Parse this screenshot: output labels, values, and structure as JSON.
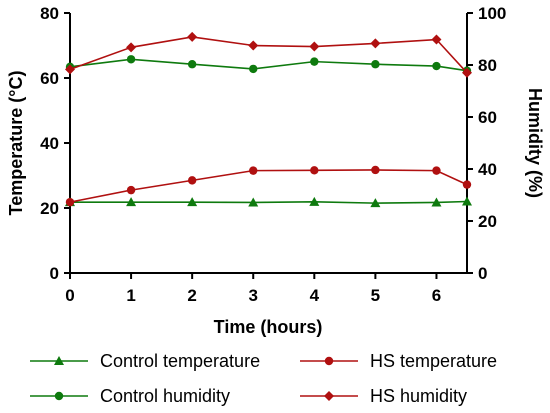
{
  "chart_data": {
    "type": "line",
    "title": "",
    "x_label": "Time (hours)",
    "y_left_label": "Temperature (°C)",
    "y_right_label": "Humidity (%)",
    "x_range": [
      0,
      6.5
    ],
    "y_left_range": [
      0,
      80
    ],
    "y_right_range": [
      0,
      100
    ],
    "x_ticks": [
      0,
      1,
      2,
      3,
      4,
      5,
      6
    ],
    "y_left_ticks": [
      0,
      20,
      40,
      60,
      80
    ],
    "y_right_ticks": [
      0,
      20,
      40,
      60,
      80,
      100
    ],
    "grid": false,
    "legend_position": "bottom",
    "colors": {
      "control": "#0e7a0e",
      "hs": "#b01010"
    },
    "series": [
      {
        "name": "Control temperature",
        "axis": "left",
        "color": "#0e7a0e",
        "marker": "triangle",
        "x": [
          0,
          1,
          2,
          3,
          4,
          5,
          6,
          6.5
        ],
        "y": [
          21.8,
          21.8,
          21.8,
          21.7,
          21.9,
          21.5,
          21.7,
          22.0
        ]
      },
      {
        "name": "Control humidity",
        "axis": "right",
        "color": "#0e7a0e",
        "marker": "circle",
        "x": [
          0,
          1,
          2,
          3,
          4,
          5,
          6,
          6.5
        ],
        "y": [
          79.3,
          82.2,
          80.3,
          78.5,
          81.3,
          80.3,
          79.6,
          77.8
        ]
      },
      {
        "name": "HS temperature",
        "axis": "left",
        "color": "#b01010",
        "marker": "circle",
        "x": [
          0,
          1,
          2,
          3,
          4,
          5,
          6,
          6.5
        ],
        "y": [
          21.8,
          25.5,
          28.5,
          31.5,
          31.6,
          31.7,
          31.5,
          27.2
        ]
      },
      {
        "name": "HS humidity",
        "axis": "right",
        "color": "#b01010",
        "marker": "diamond",
        "x": [
          0,
          1,
          2,
          3,
          4,
          5,
          6,
          6.5
        ],
        "y": [
          78.3,
          86.8,
          90.8,
          87.5,
          87.1,
          88.3,
          89.8,
          77.0
        ]
      }
    ]
  }
}
